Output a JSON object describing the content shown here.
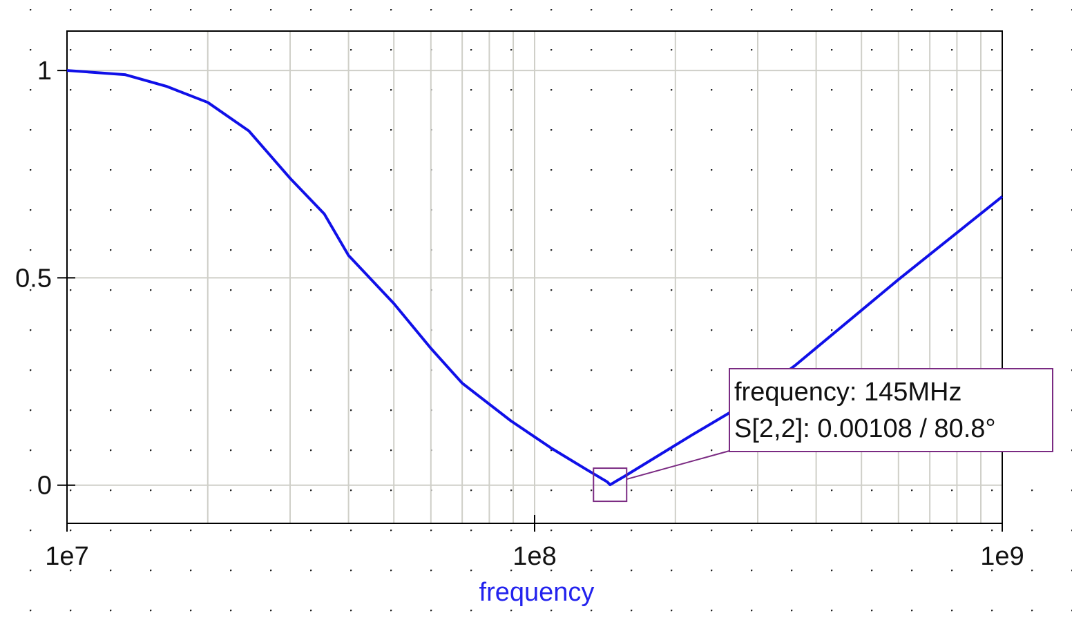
{
  "chart_data": {
    "type": "line",
    "title": "",
    "xlabel": "frequency",
    "ylabel": "",
    "xscale": "log",
    "xlim": [
      10000000.0,
      1000000000.0
    ],
    "ylim": [
      -0.092,
      1.095
    ],
    "xticks": [
      {
        "value": 10000000.0,
        "label": "1e7"
      },
      {
        "value": 100000000.0,
        "label": "1e8"
      },
      {
        "value": 1000000000.0,
        "label": "1e9"
      }
    ],
    "yticks": [
      {
        "value": 0,
        "label": "0"
      },
      {
        "value": 0.5,
        "label": "0.5"
      },
      {
        "value": 1,
        "label": "1"
      }
    ],
    "grid": true,
    "series": [
      {
        "color": "#1010e8",
        "x": [
          10000000.0,
          13300000.0,
          16300000.0,
          20000000.0,
          24500000.0,
          30000000.0,
          35500000.0,
          40000000.0,
          50000000.0,
          60000000.0,
          70000000.0,
          89000000.0,
          109000000.0,
          129000000.0,
          143000000.0,
          145000000.0,
          156000000.0,
          217000000.0,
          266000000.0,
          360000000.0,
          600000000.0,
          1000000000.0
        ],
        "y": [
          1.0,
          0.99,
          0.962,
          0.923,
          0.854,
          0.74,
          0.654,
          0.554,
          0.438,
          0.33,
          0.246,
          0.155,
          0.088,
          0.038,
          0.008,
          0.00108,
          0.022,
          0.121,
          0.18,
          0.288,
          0.496,
          0.696
        ]
      }
    ],
    "annotation": {
      "marker_x": 145000000.0,
      "marker_y": 0.00108,
      "lines": [
        "frequency: 145MHz",
        "S[2,2]: 0.00108 / 80.8°"
      ],
      "color": "#7a2a82"
    }
  }
}
